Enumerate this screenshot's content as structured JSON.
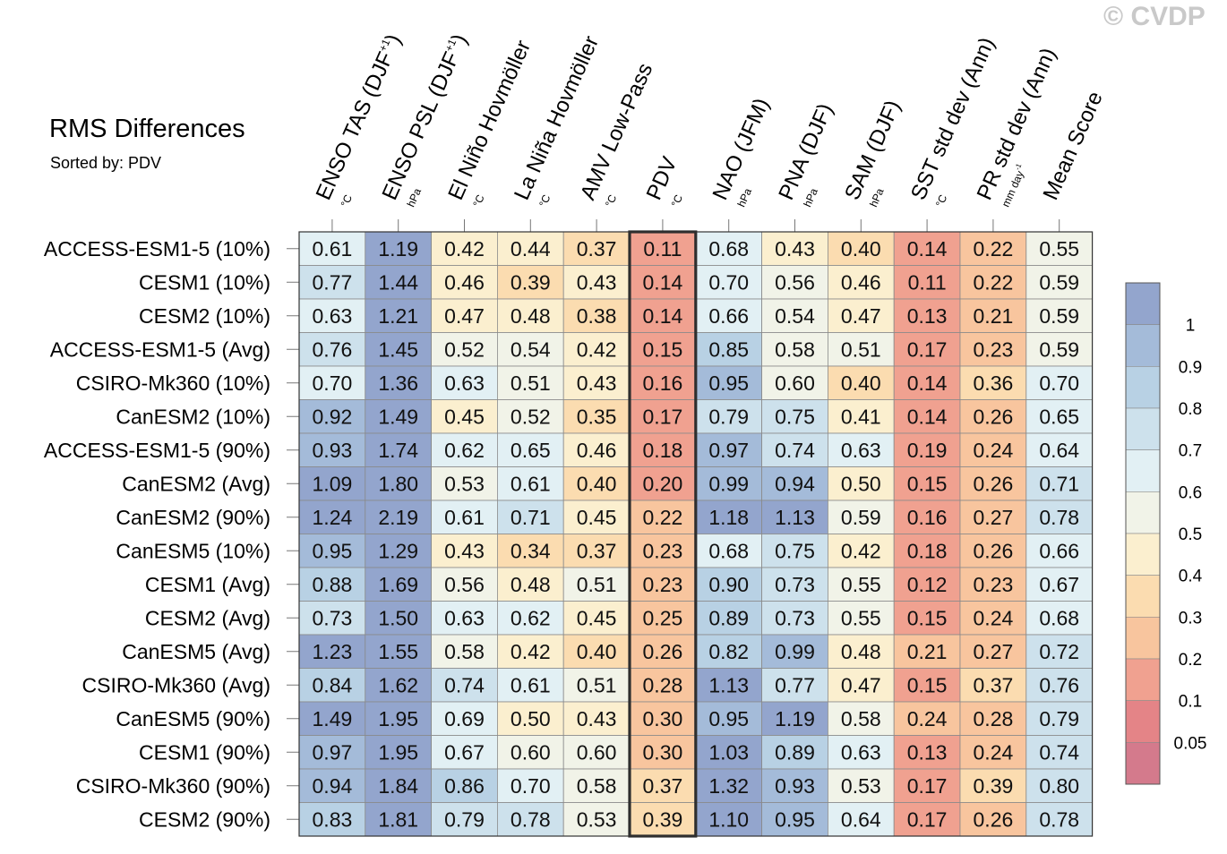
{
  "watermark": "© CVDP",
  "chart_data": {
    "type": "heatmap",
    "title": "RMS Differences",
    "subtitle": "Sorted by: PDV",
    "highlight_column": "PDV",
    "columns": [
      {
        "label": "ENSO TAS (DJF+1)",
        "unit": "°C"
      },
      {
        "label": "ENSO PSL (DJF+1)",
        "unit": "hPa"
      },
      {
        "label": "El Niño Hovmöller",
        "unit": "°C"
      },
      {
        "label": "La Niña Hovmöller",
        "unit": "°C"
      },
      {
        "label": "AMV Low-Pass",
        "unit": "°C"
      },
      {
        "label": "PDV",
        "unit": "°C"
      },
      {
        "label": "NAO (JFM)",
        "unit": "hPa"
      },
      {
        "label": "PNA (DJF)",
        "unit": "hPa"
      },
      {
        "label": "SAM (DJF)",
        "unit": "hPa"
      },
      {
        "label": "SST std dev (Ann)",
        "unit": "°C"
      },
      {
        "label": "PR std dev (Ann)",
        "unit": "mm day-1"
      },
      {
        "label": "Mean Score",
        "unit": ""
      }
    ],
    "rows": [
      {
        "name": "ACCESS-ESM1-5 (10%)",
        "values": [
          0.61,
          1.19,
          0.42,
          0.44,
          0.37,
          0.11,
          0.68,
          0.43,
          0.4,
          0.14,
          0.22,
          0.55
        ]
      },
      {
        "name": "CESM1 (10%)",
        "values": [
          0.77,
          1.44,
          0.46,
          0.39,
          0.43,
          0.14,
          0.7,
          0.56,
          0.46,
          0.11,
          0.22,
          0.59
        ]
      },
      {
        "name": "CESM2 (10%)",
        "values": [
          0.63,
          1.21,
          0.47,
          0.48,
          0.38,
          0.14,
          0.66,
          0.54,
          0.47,
          0.13,
          0.21,
          0.59
        ]
      },
      {
        "name": "ACCESS-ESM1-5 (Avg)",
        "values": [
          0.76,
          1.45,
          0.52,
          0.54,
          0.42,
          0.15,
          0.85,
          0.58,
          0.51,
          0.17,
          0.23,
          0.59
        ]
      },
      {
        "name": "CSIRO-Mk360 (10%)",
        "values": [
          0.7,
          1.36,
          0.63,
          0.51,
          0.43,
          0.16,
          0.95,
          0.6,
          0.4,
          0.14,
          0.36,
          0.7
        ]
      },
      {
        "name": "CanESM2 (10%)",
        "values": [
          0.92,
          1.49,
          0.45,
          0.52,
          0.35,
          0.17,
          0.79,
          0.75,
          0.41,
          0.14,
          0.26,
          0.65
        ]
      },
      {
        "name": "ACCESS-ESM1-5 (90%)",
        "values": [
          0.93,
          1.74,
          0.62,
          0.65,
          0.46,
          0.18,
          0.97,
          0.74,
          0.63,
          0.19,
          0.24,
          0.64
        ]
      },
      {
        "name": "CanESM2 (Avg)",
        "values": [
          1.09,
          1.8,
          0.53,
          0.61,
          0.4,
          0.2,
          0.99,
          0.94,
          0.5,
          0.15,
          0.26,
          0.71
        ]
      },
      {
        "name": "CanESM2 (90%)",
        "values": [
          1.24,
          2.19,
          0.61,
          0.71,
          0.45,
          0.22,
          1.18,
          1.13,
          0.59,
          0.16,
          0.27,
          0.78
        ]
      },
      {
        "name": "CanESM5 (10%)",
        "values": [
          0.95,
          1.29,
          0.43,
          0.34,
          0.37,
          0.23,
          0.68,
          0.75,
          0.42,
          0.18,
          0.26,
          0.66
        ]
      },
      {
        "name": "CESM1 (Avg)",
        "values": [
          0.88,
          1.69,
          0.56,
          0.48,
          0.51,
          0.23,
          0.9,
          0.73,
          0.55,
          0.12,
          0.23,
          0.67
        ]
      },
      {
        "name": "CESM2 (Avg)",
        "values": [
          0.73,
          1.5,
          0.63,
          0.62,
          0.45,
          0.25,
          0.89,
          0.73,
          0.55,
          0.15,
          0.24,
          0.68
        ]
      },
      {
        "name": "CanESM5 (Avg)",
        "values": [
          1.23,
          1.55,
          0.58,
          0.42,
          0.4,
          0.26,
          0.82,
          0.99,
          0.48,
          0.21,
          0.27,
          0.72
        ]
      },
      {
        "name": "CSIRO-Mk360 (Avg)",
        "values": [
          0.84,
          1.62,
          0.74,
          0.61,
          0.51,
          0.28,
          1.13,
          0.77,
          0.47,
          0.15,
          0.37,
          0.76
        ]
      },
      {
        "name": "CanESM5 (90%)",
        "values": [
          1.49,
          1.95,
          0.69,
          0.5,
          0.43,
          0.3,
          0.95,
          1.19,
          0.58,
          0.24,
          0.28,
          0.79
        ]
      },
      {
        "name": "CESM1 (90%)",
        "values": [
          0.97,
          1.95,
          0.67,
          0.6,
          0.6,
          0.3,
          1.03,
          0.89,
          0.63,
          0.13,
          0.24,
          0.74
        ]
      },
      {
        "name": "CSIRO-Mk360 (90%)",
        "values": [
          0.94,
          1.84,
          0.86,
          0.7,
          0.58,
          0.37,
          1.32,
          0.93,
          0.53,
          0.17,
          0.39,
          0.8
        ]
      },
      {
        "name": "CESM2 (90%)",
        "values": [
          0.83,
          1.81,
          0.79,
          0.78,
          0.53,
          0.39,
          1.1,
          0.95,
          0.64,
          0.17,
          0.26,
          0.78
        ]
      }
    ],
    "colorbar": {
      "tick_labels": [
        "1",
        "0.9",
        "0.8",
        "0.7",
        "0.6",
        "0.5",
        "0.4",
        "0.3",
        "0.2",
        "0.1",
        "0.05"
      ],
      "levels": [
        1.0,
        0.9,
        0.8,
        0.7,
        0.6,
        0.5,
        0.4,
        0.3,
        0.2,
        0.1,
        0.05
      ],
      "colors": [
        "#93a5cd",
        "#a4bbd9",
        "#b8d1e4",
        "#cde1ec",
        "#e2f0f4",
        "#f1f3e8",
        "#fbefcf",
        "#fbdcb0",
        "#f8c59e",
        "#f0a190",
        "#e48487",
        "#d47a8c"
      ]
    }
  }
}
